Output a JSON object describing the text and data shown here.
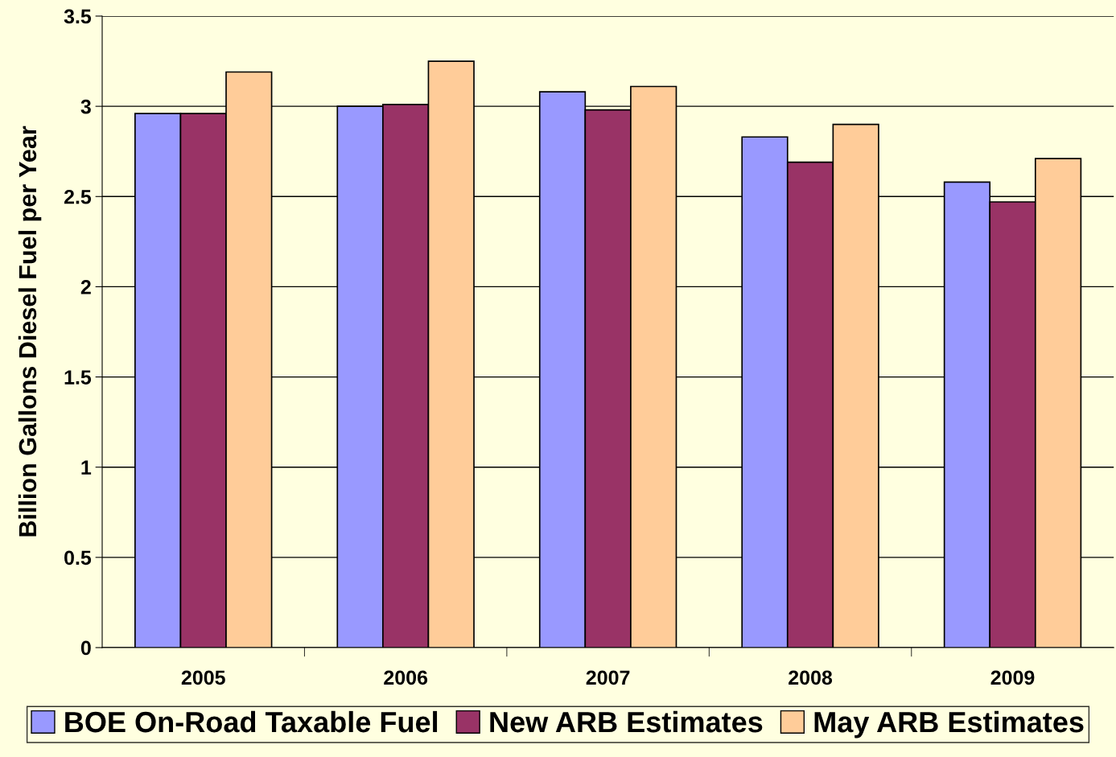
{
  "chart_data": {
    "type": "bar",
    "ylabel": "Billion Gallons Diesel Fuel per Year",
    "categories": [
      "2005",
      "2006",
      "2007",
      "2008",
      "2009"
    ],
    "series": [
      {
        "name": "BOE On-Road Taxable Fuel",
        "color": "#9999ff",
        "values": [
          2.96,
          3.0,
          3.08,
          2.83,
          2.58
        ]
      },
      {
        "name": "New ARB Estimates",
        "color": "#993366",
        "values": [
          2.96,
          3.01,
          2.98,
          2.69,
          2.47
        ]
      },
      {
        "name": "May ARB Estimates",
        "color": "#ffcc99",
        "values": [
          3.19,
          3.25,
          3.11,
          2.9,
          2.71
        ]
      }
    ],
    "ylim": [
      0,
      3.5
    ],
    "yticks": [
      0,
      0.5,
      1,
      1.5,
      2,
      2.5,
      3,
      3.5
    ],
    "grid": "y",
    "legend": "bottom"
  }
}
